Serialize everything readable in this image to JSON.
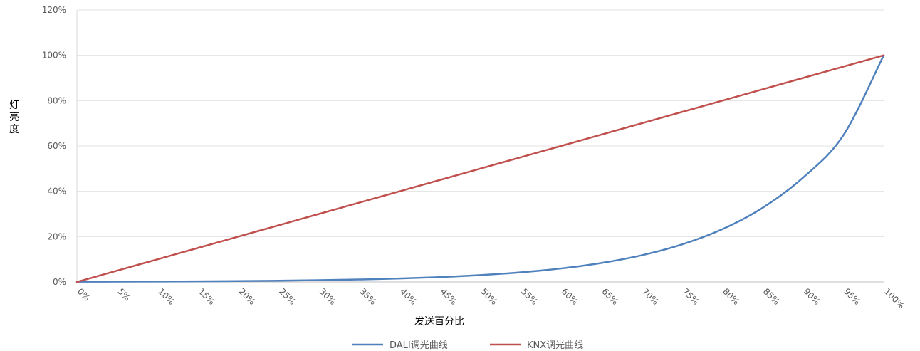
{
  "chart_data": {
    "type": "line",
    "title": "",
    "xlabel": "发送百分比",
    "ylabel": "灯亮度",
    "categories": [
      "0%",
      "5%",
      "10%",
      "15%",
      "20%",
      "25%",
      "30%",
      "35%",
      "40%",
      "45%",
      "50%",
      "55%",
      "60%",
      "65%",
      "70%",
      "75%",
      "80%",
      "85%",
      "90%",
      "95%",
      "100%"
    ],
    "x": [
      0,
      5,
      10,
      15,
      20,
      25,
      30,
      35,
      40,
      45,
      50,
      55,
      60,
      65,
      70,
      75,
      80,
      85,
      90,
      95,
      100
    ],
    "yticks": [
      "0%",
      "20%",
      "40%",
      "60%",
      "80%",
      "100%",
      "120%"
    ],
    "ylim": [
      0,
      120
    ],
    "xlim": [
      0,
      100
    ],
    "grid": true,
    "legend_position": "bottom",
    "series": [
      {
        "name": "DALI调光曲线",
        "color": "#4F81BD",
        "values": [
          0.1,
          0.14,
          0.2,
          0.28,
          0.39,
          0.55,
          0.77,
          1.08,
          1.52,
          2.14,
          3.01,
          4.23,
          5.95,
          8.37,
          11.77,
          16.55,
          23.27,
          32.73,
          46.03,
          64.73,
          100
        ]
      },
      {
        "name": "KNX调光曲线",
        "color": "#C0504D",
        "values": [
          0,
          5,
          10,
          15,
          20,
          25,
          30,
          35,
          40,
          45,
          50,
          55,
          60,
          65,
          70,
          75,
          80,
          85,
          90,
          95,
          100
        ]
      }
    ]
  }
}
